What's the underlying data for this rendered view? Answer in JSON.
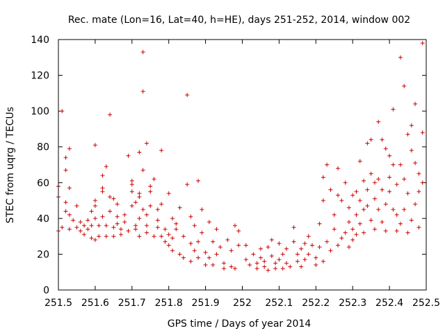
{
  "chart_data": {
    "type": "scatter",
    "title": "Rec. mate (Lon=16, Lat=40, h=HE), days 251-252, 2014, window 002",
    "xlabel": "GPS time / Days of year 2014",
    "ylabel": "STEC from uqrg / TECUs",
    "xlim": [
      251.5,
      252.5
    ],
    "ylim": [
      0,
      140
    ],
    "xticks": [
      "251.5",
      "251.6",
      "251.7",
      "251.8",
      "251.9",
      "252",
      "252.1",
      "252.2",
      "252.3",
      "252.4",
      "252.5"
    ],
    "yticks": [
      "0",
      "20",
      "40",
      "60",
      "80",
      "100",
      "120",
      "140"
    ],
    "grid": false,
    "marker": "+",
    "color": "#cc0000",
    "series": [
      {
        "points": [
          [
            251.5,
            33
          ],
          [
            251.5,
            52
          ],
          [
            251.5,
            58
          ],
          [
            251.51,
            100
          ],
          [
            251.51,
            35
          ],
          [
            251.52,
            67
          ],
          [
            251.52,
            74
          ],
          [
            251.52,
            44
          ],
          [
            251.52,
            49
          ],
          [
            251.53,
            34
          ],
          [
            251.53,
            79
          ],
          [
            251.53,
            57
          ],
          [
            251.53,
            42
          ],
          [
            251.54,
            39
          ],
          [
            251.55,
            35
          ],
          [
            251.55,
            47
          ],
          [
            251.56,
            33
          ],
          [
            251.56,
            38
          ],
          [
            251.57,
            36
          ],
          [
            251.57,
            31
          ],
          [
            251.58,
            39
          ],
          [
            251.58,
            34
          ],
          [
            251.59,
            29
          ],
          [
            251.59,
            36
          ],
          [
            251.59,
            44
          ],
          [
            251.6,
            28
          ],
          [
            251.6,
            40
          ],
          [
            251.6,
            47
          ],
          [
            251.6,
            50
          ],
          [
            251.6,
            81
          ],
          [
            251.61,
            36
          ],
          [
            251.61,
            30
          ],
          [
            251.62,
            41
          ],
          [
            251.62,
            55
          ],
          [
            251.62,
            64
          ],
          [
            251.62,
            57
          ],
          [
            251.63,
            69
          ],
          [
            251.63,
            30
          ],
          [
            251.63,
            36
          ],
          [
            251.64,
            44
          ],
          [
            251.64,
            52
          ],
          [
            251.64,
            98
          ],
          [
            251.65,
            30
          ],
          [
            251.65,
            35
          ],
          [
            251.65,
            51
          ],
          [
            251.66,
            37
          ],
          [
            251.66,
            48
          ],
          [
            251.66,
            41
          ],
          [
            251.67,
            34
          ],
          [
            251.67,
            31
          ],
          [
            251.68,
            38
          ],
          [
            251.68,
            42
          ],
          [
            251.69,
            75
          ],
          [
            251.69,
            33
          ],
          [
            251.7,
            47
          ],
          [
            251.7,
            55
          ],
          [
            251.7,
            59
          ],
          [
            251.7,
            61
          ],
          [
            251.71,
            36
          ],
          [
            251.71,
            34
          ],
          [
            251.71,
            49
          ],
          [
            251.72,
            54
          ],
          [
            251.72,
            30
          ],
          [
            251.72,
            40
          ],
          [
            251.72,
            77
          ],
          [
            251.72,
            52
          ],
          [
            251.73,
            133
          ],
          [
            251.73,
            111
          ],
          [
            251.73,
            67
          ],
          [
            251.73,
            45
          ],
          [
            251.74,
            36
          ],
          [
            251.74,
            82
          ],
          [
            251.74,
            32
          ],
          [
            251.74,
            42
          ],
          [
            251.75,
            55
          ],
          [
            251.75,
            47
          ],
          [
            251.75,
            58
          ],
          [
            251.76,
            30
          ],
          [
            251.76,
            62
          ],
          [
            251.77,
            35
          ],
          [
            251.77,
            39
          ],
          [
            251.77,
            45
          ],
          [
            251.78,
            30
          ],
          [
            251.78,
            78
          ],
          [
            251.78,
            48
          ],
          [
            251.79,
            27
          ],
          [
            251.79,
            34
          ],
          [
            251.8,
            54
          ],
          [
            251.8,
            31
          ],
          [
            251.8,
            25
          ],
          [
            251.81,
            40
          ],
          [
            251.81,
            29
          ],
          [
            251.81,
            22
          ],
          [
            251.82,
            37
          ],
          [
            251.82,
            34
          ],
          [
            251.83,
            46
          ],
          [
            251.83,
            20
          ],
          [
            251.84,
            18
          ],
          [
            251.84,
            30
          ],
          [
            251.85,
            109
          ],
          [
            251.85,
            59
          ],
          [
            251.86,
            26
          ],
          [
            251.86,
            41
          ],
          [
            251.86,
            16
          ],
          [
            251.87,
            22
          ],
          [
            251.87,
            36
          ],
          [
            251.88,
            61
          ],
          [
            251.88,
            27
          ],
          [
            251.88,
            18
          ],
          [
            251.89,
            32
          ],
          [
            251.89,
            45
          ],
          [
            251.9,
            14
          ],
          [
            251.9,
            21
          ],
          [
            251.91,
            38
          ],
          [
            251.91,
            18
          ],
          [
            251.92,
            27
          ],
          [
            251.92,
            14
          ],
          [
            251.93,
            34
          ],
          [
            251.93,
            20
          ],
          [
            251.94,
            24
          ],
          [
            251.95,
            15
          ],
          [
            251.95,
            12
          ],
          [
            251.96,
            28
          ],
          [
            251.97,
            22
          ],
          [
            251.97,
            13
          ],
          [
            251.98,
            36
          ],
          [
            251.98,
            12
          ],
          [
            251.99,
            33
          ],
          [
            251.99,
            25
          ],
          [
            252.01,
            25
          ],
          [
            252.01,
            17
          ],
          [
            252.02,
            14
          ],
          [
            252.03,
            20
          ],
          [
            252.04,
            15
          ],
          [
            252.04,
            12
          ],
          [
            252.05,
            23
          ],
          [
            252.05,
            18
          ],
          [
            252.06,
            16
          ],
          [
            252.06,
            13
          ],
          [
            252.07,
            11
          ],
          [
            252.07,
            24
          ],
          [
            252.08,
            19
          ],
          [
            252.08,
            28
          ],
          [
            252.09,
            15
          ],
          [
            252.09,
            12
          ],
          [
            252.1,
            26
          ],
          [
            252.1,
            17
          ],
          [
            252.11,
            20
          ],
          [
            252.11,
            12
          ],
          [
            252.12,
            23
          ],
          [
            252.12,
            15
          ],
          [
            252.13,
            13
          ],
          [
            252.14,
            35
          ],
          [
            252.14,
            27
          ],
          [
            252.15,
            20
          ],
          [
            252.15,
            16
          ],
          [
            252.16,
            23
          ],
          [
            252.16,
            13
          ],
          [
            252.17,
            26
          ],
          [
            252.17,
            17
          ],
          [
            252.18,
            30
          ],
          [
            252.18,
            20
          ],
          [
            252.19,
            25
          ],
          [
            252.2,
            14
          ],
          [
            252.2,
            18
          ],
          [
            252.21,
            24
          ],
          [
            252.21,
            37
          ],
          [
            252.22,
            50
          ],
          [
            252.22,
            63
          ],
          [
            252.22,
            16
          ],
          [
            252.23,
            27
          ],
          [
            252.23,
            70
          ],
          [
            252.24,
            22
          ],
          [
            252.24,
            56
          ],
          [
            252.25,
            34
          ],
          [
            252.25,
            42
          ],
          [
            252.26,
            53
          ],
          [
            252.26,
            25
          ],
          [
            252.26,
            68
          ],
          [
            252.27,
            29
          ],
          [
            252.27,
            50
          ],
          [
            252.28,
            32
          ],
          [
            252.28,
            60
          ],
          [
            252.29,
            46
          ],
          [
            252.29,
            24
          ],
          [
            252.29,
            38
          ],
          [
            252.3,
            53
          ],
          [
            252.3,
            34
          ],
          [
            252.3,
            28
          ],
          [
            252.31,
            42
          ],
          [
            252.31,
            55
          ],
          [
            252.31,
            31
          ],
          [
            252.32,
            50
          ],
          [
            252.32,
            37
          ],
          [
            252.32,
            72
          ],
          [
            252.33,
            61
          ],
          [
            252.33,
            45
          ],
          [
            252.33,
            32
          ],
          [
            252.34,
            47
          ],
          [
            252.34,
            82
          ],
          [
            252.34,
            56
          ],
          [
            252.35,
            39
          ],
          [
            252.35,
            84
          ],
          [
            252.35,
            65
          ],
          [
            252.36,
            34
          ],
          [
            252.36,
            51
          ],
          [
            252.36,
            60
          ],
          [
            252.37,
            94
          ],
          [
            252.37,
            62
          ],
          [
            252.37,
            45
          ],
          [
            252.38,
            38
          ],
          [
            252.38,
            56
          ],
          [
            252.38,
            84
          ],
          [
            252.39,
            33
          ],
          [
            252.39,
            79
          ],
          [
            252.39,
            48
          ],
          [
            252.4,
            75
          ],
          [
            252.4,
            55
          ],
          [
            252.4,
            63
          ],
          [
            252.41,
            101
          ],
          [
            252.41,
            70
          ],
          [
            252.41,
            45
          ],
          [
            252.42,
            33
          ],
          [
            252.42,
            42
          ],
          [
            252.42,
            59
          ],
          [
            252.43,
            130
          ],
          [
            252.43,
            70
          ],
          [
            252.43,
            37
          ],
          [
            252.44,
            114
          ],
          [
            252.44,
            62
          ],
          [
            252.44,
            45
          ],
          [
            252.45,
            54
          ],
          [
            252.45,
            87
          ],
          [
            252.45,
            32
          ],
          [
            252.46,
            78
          ],
          [
            252.46,
            39
          ],
          [
            252.46,
            92
          ],
          [
            252.47,
            104
          ],
          [
            252.47,
            71
          ],
          [
            252.47,
            48
          ],
          [
            252.48,
            65
          ],
          [
            252.48,
            55
          ],
          [
            252.48,
            35
          ],
          [
            252.49,
            138
          ],
          [
            252.49,
            88
          ],
          [
            252.49,
            60
          ]
        ]
      }
    ]
  }
}
